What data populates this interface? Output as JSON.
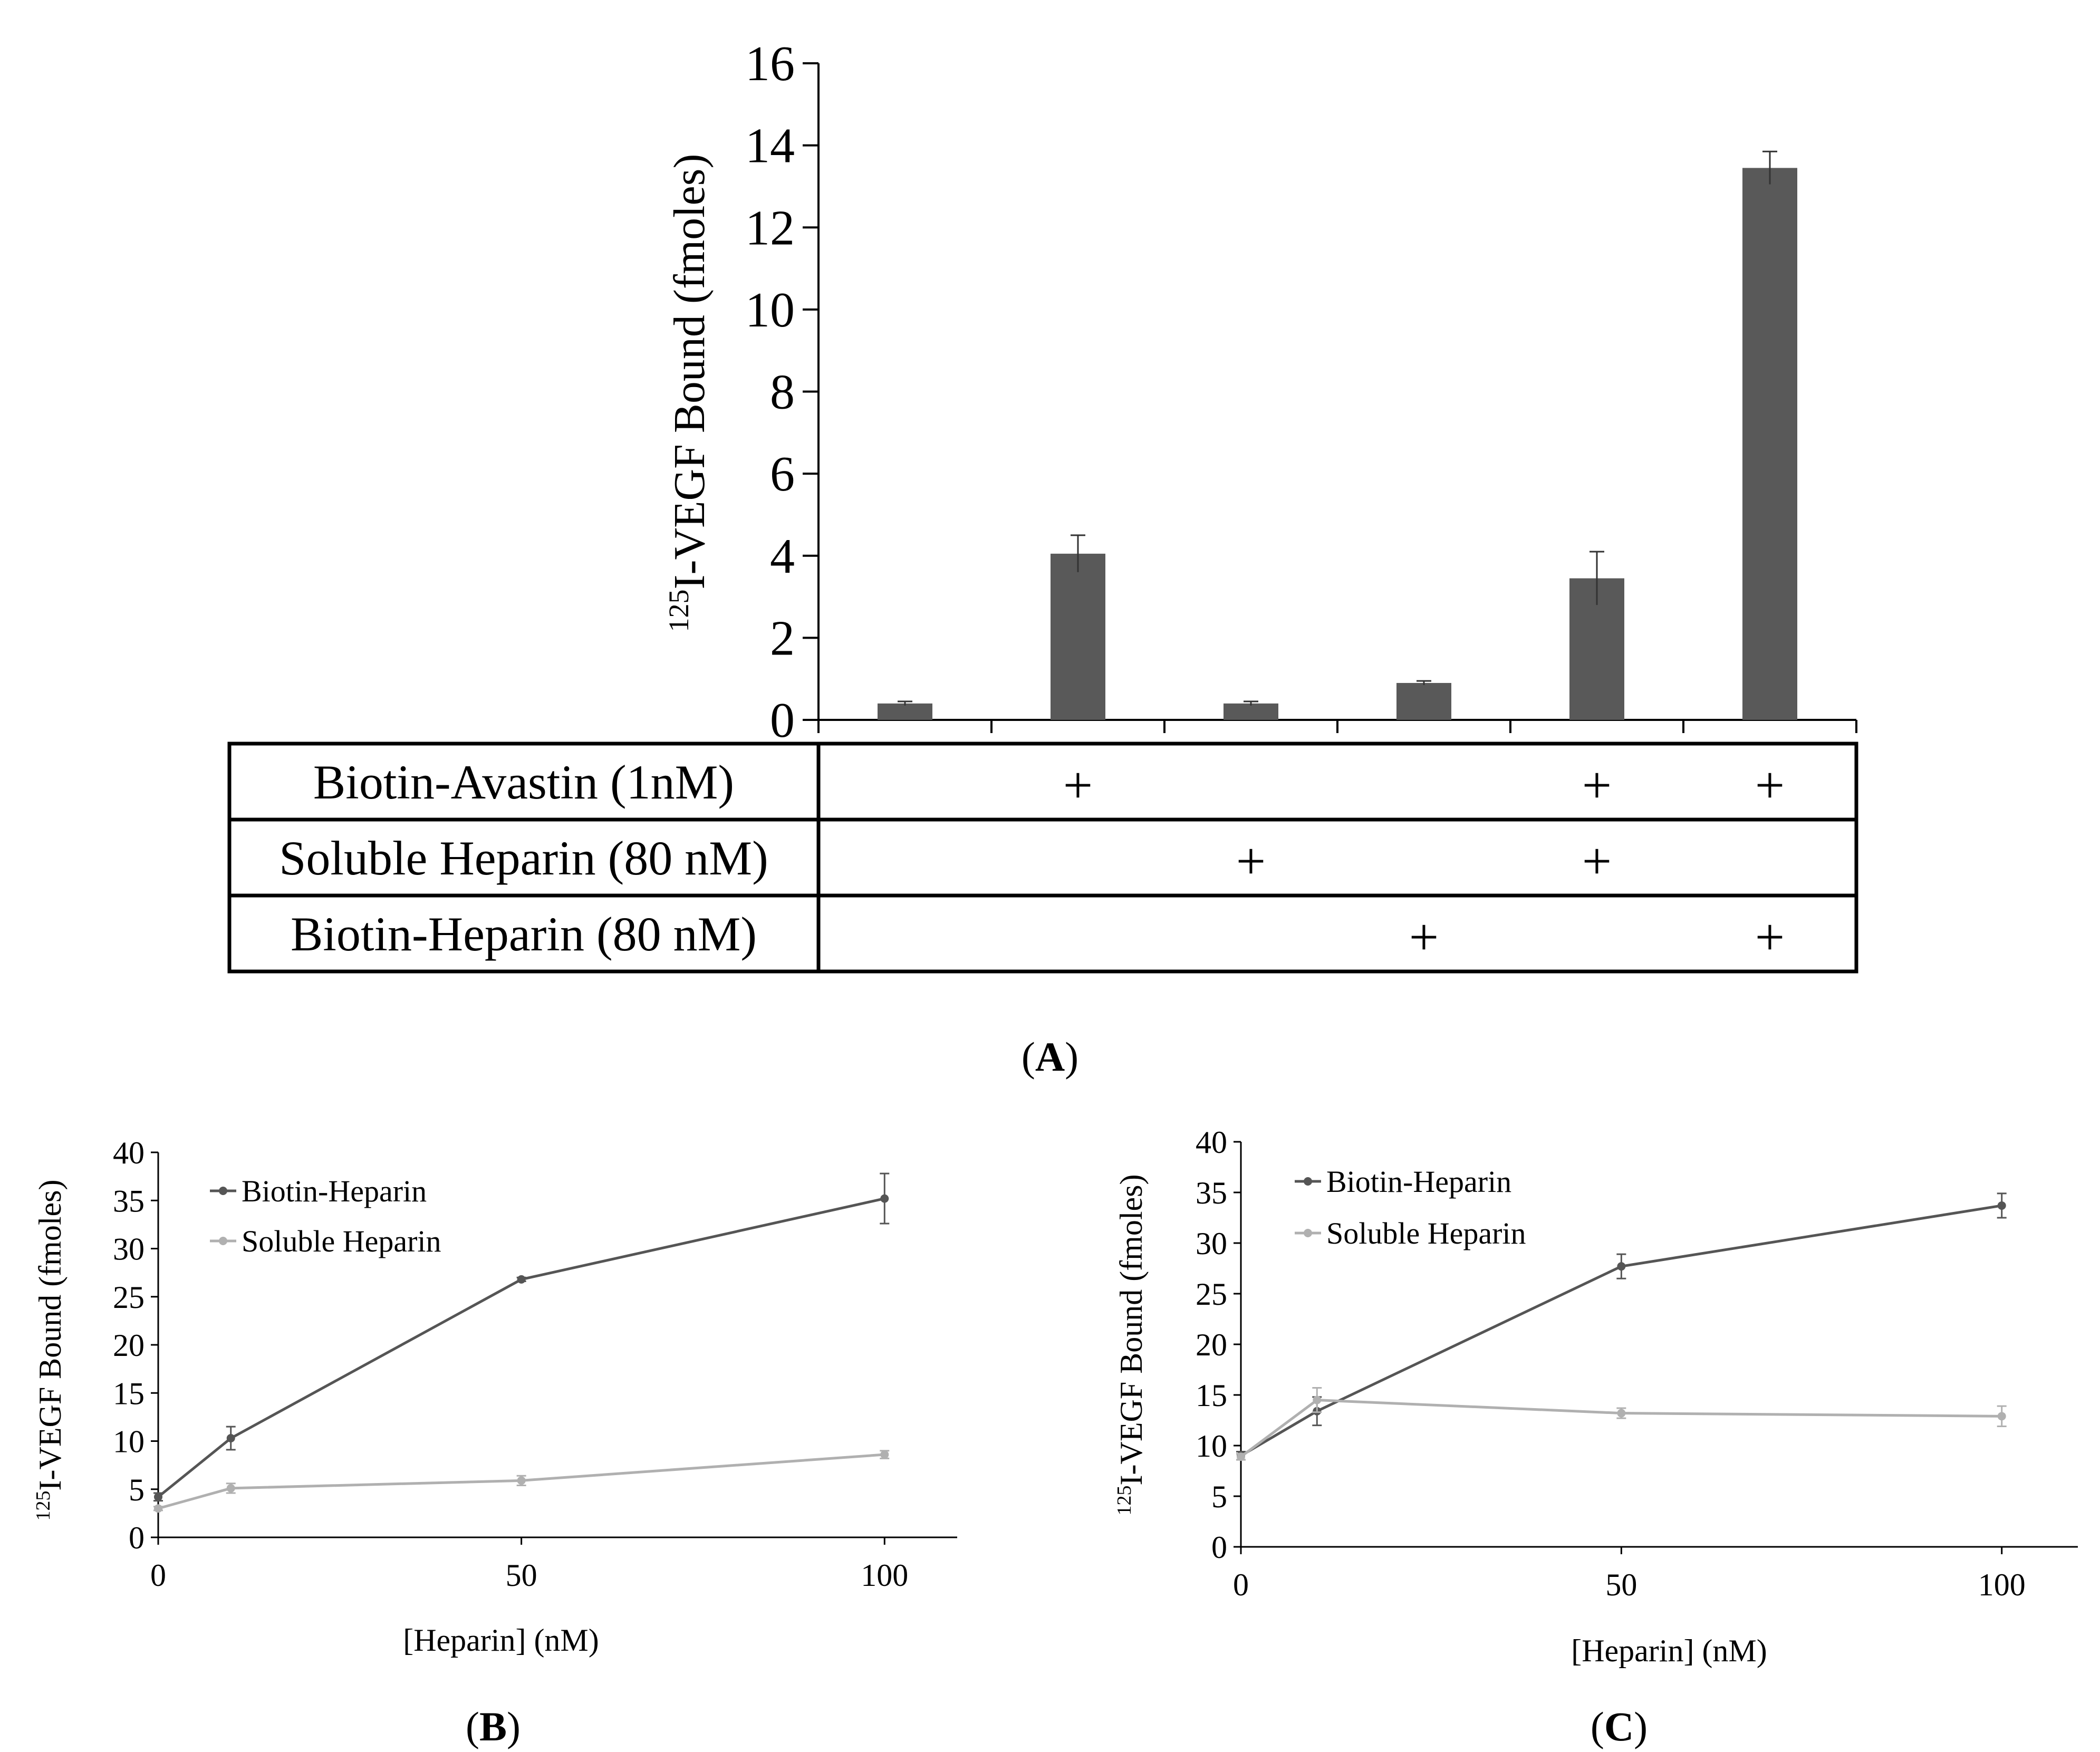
{
  "chart_data": [
    {
      "panel": "A",
      "type": "bar",
      "ylabel_sup": "125",
      "ylabel_main": "I-VEGF Bound (fmoles)",
      "ylim": [
        0,
        16
      ],
      "yticks": [
        0,
        2,
        4,
        6,
        8,
        10,
        12,
        14,
        16
      ],
      "values": [
        0.4,
        4.05,
        0.4,
        0.9,
        3.45,
        13.45
      ],
      "errors": [
        0.05,
        0.45,
        0.05,
        0.05,
        0.65,
        0.4
      ],
      "bar_color": "#595959",
      "conditions": [
        {
          "label": "Biotin-Avastin (1nM)",
          "marks": [
            "",
            "+",
            "",
            "",
            "+",
            "+"
          ]
        },
        {
          "label": "Soluble Heparin (80 nM)",
          "marks": [
            "",
            "",
            "+",
            "",
            "+",
            ""
          ]
        },
        {
          "label": "Biotin-Heparin (80 nM)",
          "marks": [
            "",
            "",
            "",
            "+",
            "",
            "+"
          ]
        }
      ]
    },
    {
      "panel": "B",
      "type": "line",
      "x": [
        0,
        10,
        50,
        100
      ],
      "xticks": [
        0,
        50,
        100
      ],
      "xlim": [
        0,
        110
      ],
      "ylim": [
        0,
        40
      ],
      "yticks": [
        0,
        5,
        10,
        15,
        20,
        25,
        30,
        35,
        40
      ],
      "xlabel": "[Heparin] (nM)",
      "ylabel_sup": "125",
      "ylabel_main": "I-VEGF Bound (fmoles)",
      "legend_position": "top-left",
      "series": [
        {
          "name": "Biotin-Heparin",
          "color": "#555555",
          "values": [
            4.2,
            10.3,
            26.8,
            35.2
          ],
          "errors": [
            0.4,
            1.2,
            0.2,
            2.6
          ]
        },
        {
          "name": "Soluble Heparin",
          "color": "#b0b0b0",
          "values": [
            3.0,
            5.1,
            5.9,
            8.6
          ],
          "errors": [
            0.2,
            0.5,
            0.5,
            0.4
          ]
        }
      ]
    },
    {
      "panel": "C",
      "type": "line",
      "x": [
        0,
        10,
        50,
        100
      ],
      "xticks": [
        0,
        50,
        100
      ],
      "xlim": [
        0,
        110
      ],
      "ylim": [
        0,
        40
      ],
      "yticks": [
        0,
        5,
        10,
        15,
        20,
        25,
        30,
        35,
        40
      ],
      "xlabel": "[Heparin] (nM)",
      "ylabel_sup": "125",
      "ylabel_main": "I-VEGF Bound (fmoles)",
      "legend_position": "top-left",
      "series": [
        {
          "name": "Biotin-Heparin",
          "color": "#555555",
          "values": [
            9.0,
            13.4,
            27.7,
            33.7
          ],
          "errors": [
            0.4,
            1.4,
            1.2,
            1.2
          ]
        },
        {
          "name": "Soluble Heparin",
          "color": "#b0b0b0",
          "values": [
            8.9,
            14.5,
            13.2,
            12.9
          ],
          "errors": [
            0.3,
            1.2,
            0.5,
            1.0
          ]
        }
      ]
    }
  ]
}
